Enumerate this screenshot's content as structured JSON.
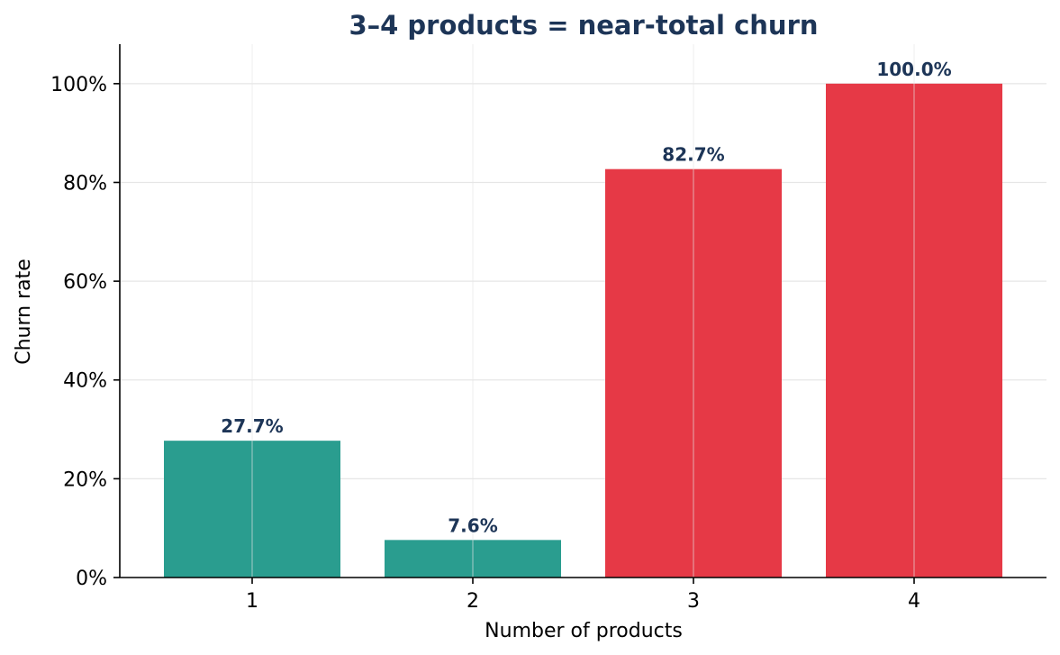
{
  "chart_data": {
    "type": "bar",
    "title": "3–4 products = near-total churn",
    "xlabel": "Number of products",
    "ylabel": "Churn rate",
    "categories": [
      "1",
      "2",
      "3",
      "4"
    ],
    "values": [
      27.7,
      7.6,
      82.7,
      100.0
    ],
    "value_labels": [
      "27.7%",
      "7.6%",
      "82.7%",
      "100.0%"
    ],
    "bar_colors": [
      "#2a9d8f",
      "#2a9d8f",
      "#e63946",
      "#e63946"
    ],
    "ylim": [
      0,
      108
    ],
    "yticks": [
      0,
      20,
      40,
      60,
      80,
      100
    ],
    "ytick_labels": [
      "0%",
      "20%",
      "40%",
      "60%",
      "80%",
      "100%"
    ],
    "grid": true,
    "legend": false
  }
}
